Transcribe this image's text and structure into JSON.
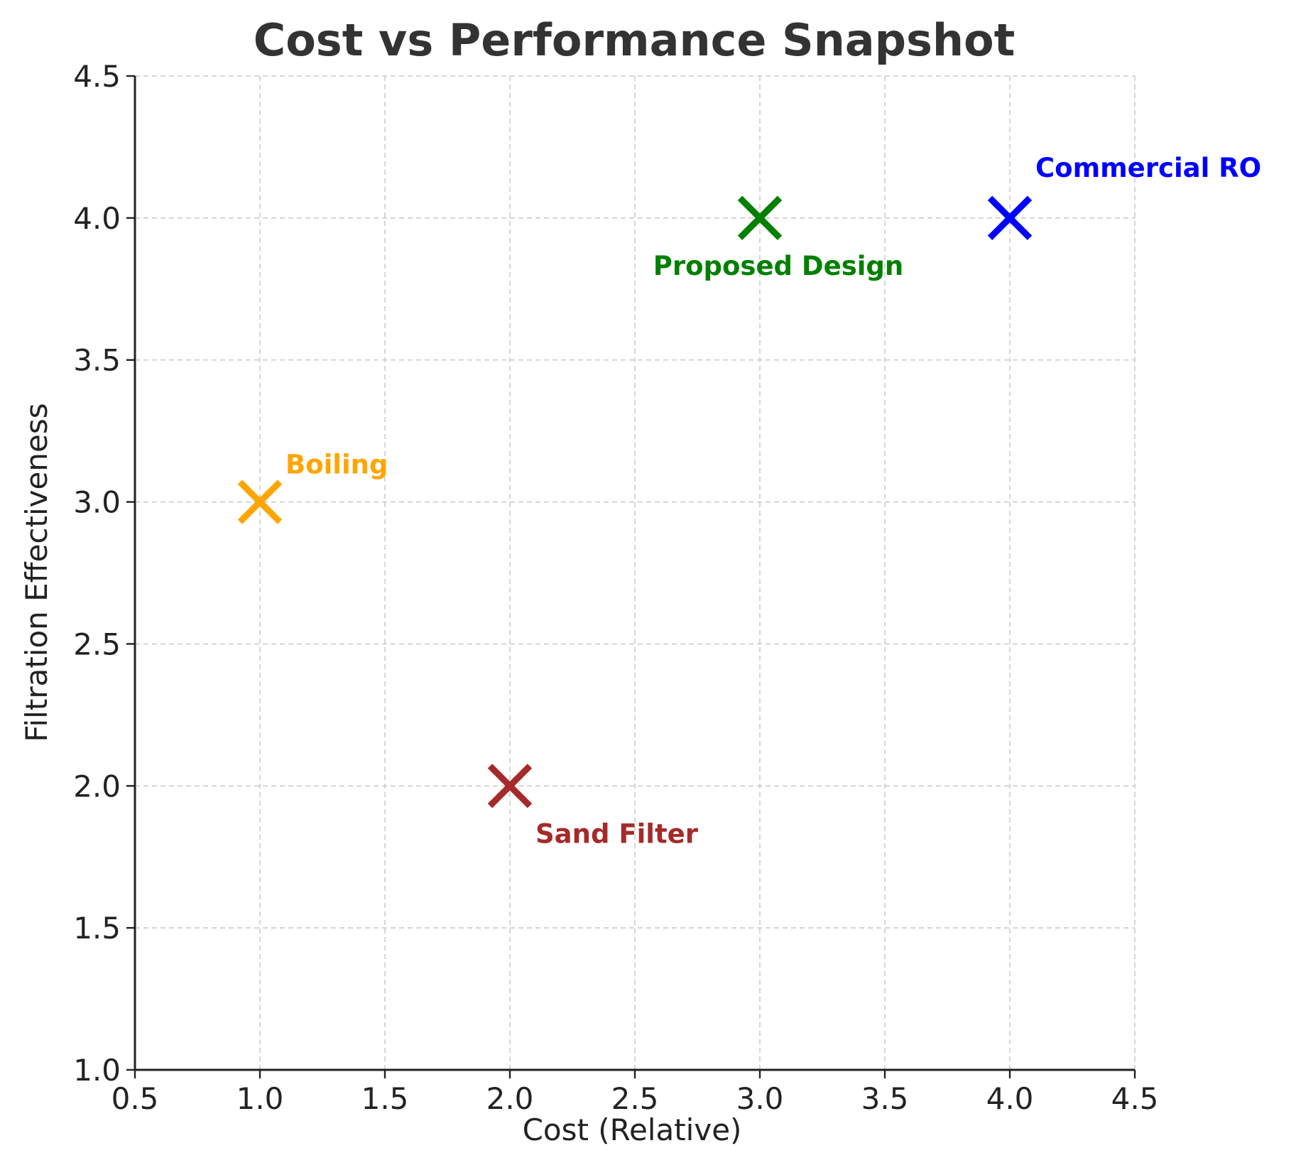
{
  "chart_data": {
    "type": "scatter",
    "title": "Cost vs Performance Snapshot",
    "xlabel": "Cost (Relative)",
    "ylabel": "Filtration Effectiveness",
    "xlim": [
      0.5,
      4.5
    ],
    "ylim": [
      1.0,
      4.5
    ],
    "xticks": [
      "0.5",
      "1.0",
      "1.5",
      "2.0",
      "2.5",
      "3.0",
      "3.5",
      "4.0",
      "4.5"
    ],
    "yticks": [
      "1.0",
      "1.5",
      "2.0",
      "2.5",
      "3.0",
      "3.5",
      "4.0",
      "4.5"
    ],
    "grid": true,
    "marker": "x",
    "points": [
      {
        "label": "Boiling",
        "x": 1,
        "y": 3,
        "color": "#FFA500"
      },
      {
        "label": "Sand Filter",
        "x": 2,
        "y": 2,
        "color": "#A52A2A"
      },
      {
        "label": "Proposed Design",
        "x": 3,
        "y": 4,
        "color": "#008000"
      },
      {
        "label": "Commercial RO",
        "x": 4,
        "y": 4,
        "color": "#0000FF"
      }
    ]
  }
}
